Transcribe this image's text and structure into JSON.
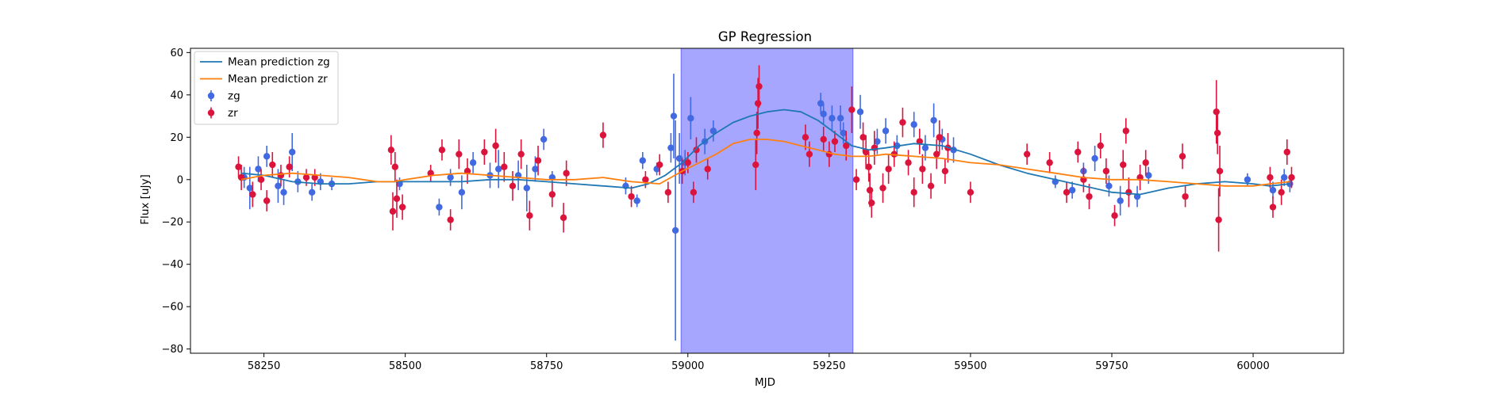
{
  "chart_data": {
    "type": "scatter",
    "title": "GP Regression",
    "xlabel": "MJD",
    "ylabel": "Flux [uJy]",
    "xlim": [
      58120,
      60160
    ],
    "ylim": [
      -82,
      62
    ],
    "xticks": [
      58250,
      58500,
      58750,
      59000,
      59250,
      59500,
      59750,
      60000
    ],
    "yticks": [
      -80,
      -60,
      -40,
      -20,
      0,
      20,
      40,
      60
    ],
    "grid": false,
    "legend_position": "top-left",
    "highlight_region": {
      "x0": 58988,
      "x1": 59292,
      "color": "#a6a6ff"
    },
    "colors": {
      "zg": "#4169e1",
      "zr": "#dc143c",
      "mean_zg": "#1f77b4",
      "mean_zr": "#ff7f0e"
    },
    "legend": [
      {
        "label": "Mean prediction zg",
        "kind": "line",
        "color": "#1f77b4"
      },
      {
        "label": "Mean prediction zr",
        "kind": "line",
        "color": "#ff7f0e"
      },
      {
        "label": "zg",
        "kind": "errorbar",
        "color": "#4169e1"
      },
      {
        "label": "zr",
        "kind": "errorbar",
        "color": "#dc143c"
      }
    ],
    "series": [
      {
        "name": "Mean prediction zg",
        "type": "line",
        "color": "#1f77b4",
        "x": [
          58210,
          58250,
          58300,
          58350,
          58400,
          58450,
          58500,
          58550,
          58600,
          58650,
          58700,
          58750,
          58800,
          58850,
          58900,
          58930,
          58960,
          58990,
          59020,
          59050,
          59080,
          59110,
          59140,
          59170,
          59200,
          59230,
          59260,
          59290,
          59320,
          59350,
          59400,
          59450,
          59500,
          59550,
          59600,
          59650,
          59700,
          59750,
          59800,
          59850,
          59900,
          59950,
          60000,
          60030,
          60065
        ],
        "y": [
          3,
          2,
          -1,
          -2,
          -2,
          -1,
          -1,
          -1,
          -1,
          0,
          0,
          -1,
          -2,
          -3,
          -4,
          -2,
          2,
          8,
          16,
          22,
          27,
          30,
          32,
          33,
          32,
          28,
          22,
          16,
          14,
          15,
          17,
          16,
          12,
          7,
          3,
          0,
          -3,
          -6,
          -7,
          -4,
          -2,
          -1,
          -2,
          -3,
          -2
        ]
      },
      {
        "name": "Mean prediction zr",
        "type": "line",
        "color": "#ff7f0e",
        "x": [
          58210,
          58250,
          58300,
          58350,
          58400,
          58450,
          58480,
          58500,
          58550,
          58600,
          58650,
          58700,
          58750,
          58800,
          58850,
          58900,
          58950,
          58990,
          59020,
          59050,
          59080,
          59110,
          59140,
          59170,
          59200,
          59230,
          59260,
          59290,
          59320,
          59350,
          59400,
          59450,
          59500,
          59550,
          59600,
          59650,
          59700,
          59750,
          59800,
          59850,
          59900,
          59950,
          60000,
          60030,
          60065
        ],
        "y": [
          0,
          2,
          3,
          2,
          1,
          -1,
          -1,
          0,
          2,
          3,
          2,
          1,
          0,
          0,
          1,
          -1,
          -2,
          4,
          8,
          12,
          17,
          19,
          19,
          18,
          16,
          14,
          12,
          11,
          11,
          12,
          11,
          10,
          8,
          7,
          5,
          3,
          1,
          0,
          0,
          -1,
          -2,
          -3,
          -3,
          -2,
          -1
        ]
      },
      {
        "name": "zg",
        "type": "errorbar",
        "color": "#4169e1",
        "points": [
          {
            "x": 58215,
            "y": 1,
            "err": 5
          },
          {
            "x": 58225,
            "y": -4,
            "err": 10
          },
          {
            "x": 58240,
            "y": 5,
            "err": 6
          },
          {
            "x": 58255,
            "y": 11,
            "err": 5
          },
          {
            "x": 58275,
            "y": -3,
            "err": 8
          },
          {
            "x": 58285,
            "y": -6,
            "err": 6
          },
          {
            "x": 58300,
            "y": 13,
            "err": 9
          },
          {
            "x": 58310,
            "y": -1,
            "err": 5
          },
          {
            "x": 58335,
            "y": -6,
            "err": 4
          },
          {
            "x": 58350,
            "y": -1,
            "err": 4
          },
          {
            "x": 58370,
            "y": -2,
            "err": 3
          },
          {
            "x": 58490,
            "y": -2,
            "err": 3
          },
          {
            "x": 58560,
            "y": -13,
            "err": 4
          },
          {
            "x": 58580,
            "y": 1,
            "err": 4
          },
          {
            "x": 58600,
            "y": -6,
            "err": 8
          },
          {
            "x": 58620,
            "y": 8,
            "err": 5
          },
          {
            "x": 58650,
            "y": 2,
            "err": 6
          },
          {
            "x": 58665,
            "y": 5,
            "err": 9
          },
          {
            "x": 58700,
            "y": 2,
            "err": 7
          },
          {
            "x": 58715,
            "y": -4,
            "err": 11
          },
          {
            "x": 58730,
            "y": 5,
            "err": 6
          },
          {
            "x": 58745,
            "y": 19,
            "err": 5
          },
          {
            "x": 58760,
            "y": 1,
            "err": 3
          },
          {
            "x": 58890,
            "y": -3,
            "err": 4
          },
          {
            "x": 58910,
            "y": -10,
            "err": 3
          },
          {
            "x": 58920,
            "y": 9,
            "err": 4
          },
          {
            "x": 58945,
            "y": 5,
            "err": 3
          },
          {
            "x": 58970,
            "y": 15,
            "err": 7
          },
          {
            "x": 58975,
            "y": 30,
            "err": 20
          },
          {
            "x": 58978,
            "y": -24,
            "err": 52
          },
          {
            "x": 58985,
            "y": 10,
            "err": 12
          },
          {
            "x": 58995,
            "y": 8,
            "err": 6
          },
          {
            "x": 59005,
            "y": 29,
            "err": 10
          },
          {
            "x": 59030,
            "y": 18,
            "err": 6
          },
          {
            "x": 59045,
            "y": 23,
            "err": 5
          },
          {
            "x": 59235,
            "y": 36,
            "err": 5
          },
          {
            "x": 59240,
            "y": 31,
            "err": 5
          },
          {
            "x": 59255,
            "y": 29,
            "err": 6
          },
          {
            "x": 59270,
            "y": 29,
            "err": 6
          },
          {
            "x": 59275,
            "y": 22,
            "err": 5
          },
          {
            "x": 59305,
            "y": 32,
            "err": 8
          },
          {
            "x": 59335,
            "y": 18,
            "err": 6
          },
          {
            "x": 59350,
            "y": 23,
            "err": 6
          },
          {
            "x": 59370,
            "y": 16,
            "err": 5
          },
          {
            "x": 59400,
            "y": 26,
            "err": 6
          },
          {
            "x": 59420,
            "y": 15,
            "err": 6
          },
          {
            "x": 59435,
            "y": 28,
            "err": 8
          },
          {
            "x": 59450,
            "y": 19,
            "err": 5
          },
          {
            "x": 59470,
            "y": 14,
            "err": 6
          },
          {
            "x": 59650,
            "y": -1,
            "err": 3
          },
          {
            "x": 59680,
            "y": -5,
            "err": 4
          },
          {
            "x": 59700,
            "y": 4,
            "err": 4
          },
          {
            "x": 59720,
            "y": 10,
            "err": 6
          },
          {
            "x": 59745,
            "y": -3,
            "err": 5
          },
          {
            "x": 59765,
            "y": -10,
            "err": 7
          },
          {
            "x": 59795,
            "y": -8,
            "err": 5
          },
          {
            "x": 59815,
            "y": 2,
            "err": 4
          },
          {
            "x": 59990,
            "y": 0,
            "err": 3
          },
          {
            "x": 60035,
            "y": -5,
            "err": 4
          },
          {
            "x": 60055,
            "y": 1,
            "err": 4
          },
          {
            "x": 60065,
            "y": -2,
            "err": 4
          }
        ]
      },
      {
        "name": "zr",
        "type": "errorbar",
        "color": "#dc143c",
        "points": [
          {
            "x": 58205,
            "y": 6,
            "err": 5
          },
          {
            "x": 58210,
            "y": 1,
            "err": 6
          },
          {
            "x": 58230,
            "y": -7,
            "err": 6
          },
          {
            "x": 58245,
            "y": 0,
            "err": 5
          },
          {
            "x": 58255,
            "y": -10,
            "err": 5
          },
          {
            "x": 58265,
            "y": 7,
            "err": 6
          },
          {
            "x": 58280,
            "y": 2,
            "err": 5
          },
          {
            "x": 58295,
            "y": 6,
            "err": 5
          },
          {
            "x": 58325,
            "y": 1,
            "err": 4
          },
          {
            "x": 58340,
            "y": 1,
            "err": 4
          },
          {
            "x": 58475,
            "y": 14,
            "err": 7
          },
          {
            "x": 58478,
            "y": -15,
            "err": 9
          },
          {
            "x": 58482,
            "y": 6,
            "err": 7
          },
          {
            "x": 58485,
            "y": -9,
            "err": 9
          },
          {
            "x": 58495,
            "y": -13,
            "err": 6
          },
          {
            "x": 58545,
            "y": 3,
            "err": 4
          },
          {
            "x": 58565,
            "y": 14,
            "err": 5
          },
          {
            "x": 58580,
            "y": -19,
            "err": 5
          },
          {
            "x": 58595,
            "y": 12,
            "err": 7
          },
          {
            "x": 58610,
            "y": 4,
            "err": 6
          },
          {
            "x": 58640,
            "y": 13,
            "err": 6
          },
          {
            "x": 58660,
            "y": 16,
            "err": 8
          },
          {
            "x": 58675,
            "y": 6,
            "err": 7
          },
          {
            "x": 58690,
            "y": -3,
            "err": 7
          },
          {
            "x": 58705,
            "y": 12,
            "err": 7
          },
          {
            "x": 58720,
            "y": -17,
            "err": 7
          },
          {
            "x": 58735,
            "y": 9,
            "err": 7
          },
          {
            "x": 58760,
            "y": -7,
            "err": 6
          },
          {
            "x": 58780,
            "y": -18,
            "err": 7
          },
          {
            "x": 58785,
            "y": 3,
            "err": 6
          },
          {
            "x": 58850,
            "y": 21,
            "err": 6
          },
          {
            "x": 58900,
            "y": -8,
            "err": 5
          },
          {
            "x": 58925,
            "y": 0,
            "err": 4
          },
          {
            "x": 58950,
            "y": 7,
            "err": 5
          },
          {
            "x": 58965,
            "y": -6,
            "err": 5
          },
          {
            "x": 58990,
            "y": 4,
            "err": 6
          },
          {
            "x": 59000,
            "y": 8,
            "err": 5
          },
          {
            "x": 59010,
            "y": -6,
            "err": 5
          },
          {
            "x": 59015,
            "y": 14,
            "err": 6
          },
          {
            "x": 59035,
            "y": 5,
            "err": 5
          },
          {
            "x": 59120,
            "y": 7,
            "err": 12
          },
          {
            "x": 59122,
            "y": 22,
            "err": 10
          },
          {
            "x": 59124,
            "y": 36,
            "err": 12
          },
          {
            "x": 59126,
            "y": 44,
            "err": 10
          },
          {
            "x": 59208,
            "y": 20,
            "err": 6
          },
          {
            "x": 59215,
            "y": 12,
            "err": 6
          },
          {
            "x": 59240,
            "y": 19,
            "err": 6
          },
          {
            "x": 59250,
            "y": 12,
            "err": 6
          },
          {
            "x": 59260,
            "y": 18,
            "err": 5
          },
          {
            "x": 59280,
            "y": 16,
            "err": 7
          },
          {
            "x": 59290,
            "y": 33,
            "err": 11
          },
          {
            "x": 59298,
            "y": 0,
            "err": 5
          },
          {
            "x": 59310,
            "y": 20,
            "err": 7
          },
          {
            "x": 59315,
            "y": 13,
            "err": 8
          },
          {
            "x": 59320,
            "y": 6,
            "err": 7
          },
          {
            "x": 59322,
            "y": -5,
            "err": 8
          },
          {
            "x": 59325,
            "y": -11,
            "err": 7
          },
          {
            "x": 59330,
            "y": 15,
            "err": 8
          },
          {
            "x": 59345,
            "y": -4,
            "err": 7
          },
          {
            "x": 59355,
            "y": 5,
            "err": 7
          },
          {
            "x": 59365,
            "y": 12,
            "err": 6
          },
          {
            "x": 59380,
            "y": 27,
            "err": 7
          },
          {
            "x": 59390,
            "y": 8,
            "err": 6
          },
          {
            "x": 59400,
            "y": -6,
            "err": 7
          },
          {
            "x": 59410,
            "y": 18,
            "err": 6
          },
          {
            "x": 59415,
            "y": 5,
            "err": 7
          },
          {
            "x": 59430,
            "y": -3,
            "err": 6
          },
          {
            "x": 59440,
            "y": 12,
            "err": 7
          },
          {
            "x": 59445,
            "y": 20,
            "err": 8
          },
          {
            "x": 59455,
            "y": 4,
            "err": 6
          },
          {
            "x": 59460,
            "y": 15,
            "err": 7
          },
          {
            "x": 59500,
            "y": -6,
            "err": 5
          },
          {
            "x": 59600,
            "y": 12,
            "err": 5
          },
          {
            "x": 59640,
            "y": 8,
            "err": 5
          },
          {
            "x": 59670,
            "y": -6,
            "err": 5
          },
          {
            "x": 59690,
            "y": 13,
            "err": 5
          },
          {
            "x": 59700,
            "y": 0,
            "err": 6
          },
          {
            "x": 59710,
            "y": -8,
            "err": 6
          },
          {
            "x": 59730,
            "y": 16,
            "err": 6
          },
          {
            "x": 59740,
            "y": 4,
            "err": 6
          },
          {
            "x": 59755,
            "y": -17,
            "err": 5
          },
          {
            "x": 59770,
            "y": 7,
            "err": 7
          },
          {
            "x": 59775,
            "y": 23,
            "err": 6
          },
          {
            "x": 59780,
            "y": -6,
            "err": 7
          },
          {
            "x": 59800,
            "y": 1,
            "err": 6
          },
          {
            "x": 59810,
            "y": 8,
            "err": 6
          },
          {
            "x": 59875,
            "y": 11,
            "err": 6
          },
          {
            "x": 59880,
            "y": -8,
            "err": 5
          },
          {
            "x": 59935,
            "y": 32,
            "err": 15
          },
          {
            "x": 59937,
            "y": 22,
            "err": 10
          },
          {
            "x": 59939,
            "y": -19,
            "err": 15
          },
          {
            "x": 59941,
            "y": 4,
            "err": 12
          },
          {
            "x": 60030,
            "y": 1,
            "err": 5
          },
          {
            "x": 60035,
            "y": -13,
            "err": 5
          },
          {
            "x": 60050,
            "y": -6,
            "err": 6
          },
          {
            "x": 60060,
            "y": 13,
            "err": 6
          },
          {
            "x": 60068,
            "y": 1,
            "err": 5
          }
        ]
      }
    ]
  }
}
